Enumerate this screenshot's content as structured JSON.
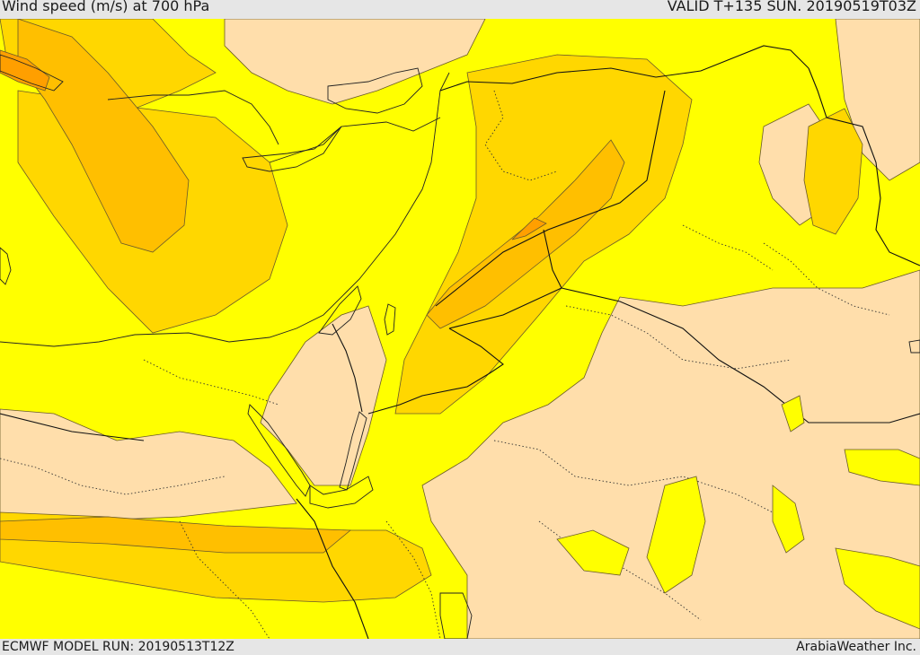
{
  "header": {
    "title": "Wind speed (m/s) at 700 hPa",
    "valid": "VALID T+135 SUN. 20190519T03Z"
  },
  "footer": {
    "model_run": "ECMWF MODEL RUN: 20190513T12Z",
    "credit": "ArabiaWeather Inc."
  },
  "colors": {
    "speed_low": "#ffdeab",
    "speed_mid": "#ffff00",
    "speed_high": "#ffd700",
    "speed_higher": "#ffbf00",
    "speed_highest": "#ff9f00",
    "water_white": "#ffffff"
  }
}
